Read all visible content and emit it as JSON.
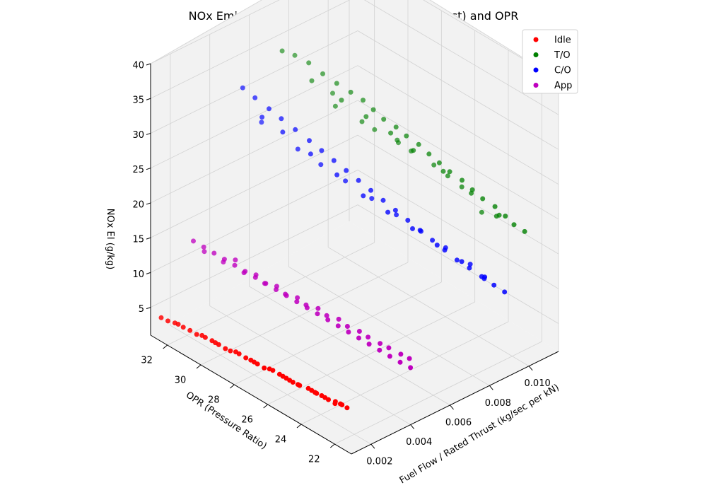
{
  "chart_data": {
    "type": "scatter3d",
    "title": "NOx Emission Index vs (Fuel Flow / Rated Thrust) and OPR",
    "xlabel": "Fuel Flow / Rated Thrust (kg/sec per kN)",
    "ylabel": "OPR (Pressure Ratio)",
    "zlabel": "NOx EI (g/kg)",
    "xticks": [
      "0.002",
      "0.004",
      "0.006",
      "0.008",
      "0.010"
    ],
    "yticks": [
      "22",
      "24",
      "26",
      "28",
      "30",
      "32"
    ],
    "zticks": [
      "5",
      "10",
      "15",
      "20",
      "25",
      "30",
      "35",
      "40"
    ],
    "xlim": [
      0.001,
      0.0115
    ],
    "ylim": [
      21,
      33
    ],
    "zlim": [
      1,
      40
    ],
    "grid": true,
    "legend_position": "top-right",
    "series": [
      {
        "name": "Idle",
        "color": "#ff0000",
        "points": [
          {
            "x": 0.0012,
            "y": 32.6,
            "z": 3.8
          },
          {
            "x": 0.0012,
            "y": 32.2,
            "z": 3.9
          },
          {
            "x": 0.0013,
            "y": 31.7,
            "z": 4.0
          },
          {
            "x": 0.0013,
            "y": 31.4,
            "z": 4.0
          },
          {
            "x": 0.0013,
            "y": 31.0,
            "z": 4.1
          },
          {
            "x": 0.0013,
            "y": 30.6,
            "z": 4.1
          },
          {
            "x": 0.0014,
            "y": 30.2,
            "z": 4.1
          },
          {
            "x": 0.0014,
            "y": 29.8,
            "z": 4.2
          },
          {
            "x": 0.0014,
            "y": 29.4,
            "z": 4.2
          },
          {
            "x": 0.0014,
            "y": 29.0,
            "z": 4.2
          },
          {
            "x": 0.0014,
            "y": 28.7,
            "z": 4.3
          },
          {
            "x": 0.0015,
            "y": 28.3,
            "z": 4.3
          },
          {
            "x": 0.0015,
            "y": 27.9,
            "z": 4.3
          },
          {
            "x": 0.0015,
            "y": 27.6,
            "z": 4.4
          },
          {
            "x": 0.0015,
            "y": 27.2,
            "z": 4.4
          },
          {
            "x": 0.0015,
            "y": 26.8,
            "z": 4.4
          },
          {
            "x": 0.0016,
            "y": 26.4,
            "z": 4.5
          },
          {
            "x": 0.0016,
            "y": 26.0,
            "z": 4.5
          },
          {
            "x": 0.0016,
            "y": 25.6,
            "z": 4.5
          },
          {
            "x": 0.0016,
            "y": 25.2,
            "z": 4.5
          },
          {
            "x": 0.0016,
            "y": 24.8,
            "z": 4.6
          },
          {
            "x": 0.0017,
            "y": 24.4,
            "z": 4.6
          },
          {
            "x": 0.0017,
            "y": 24.0,
            "z": 4.6
          },
          {
            "x": 0.0017,
            "y": 23.6,
            "z": 4.7
          },
          {
            "x": 0.0017,
            "y": 23.2,
            "z": 4.7
          },
          {
            "x": 0.0017,
            "y": 22.8,
            "z": 4.7
          },
          {
            "x": 0.0018,
            "y": 22.5,
            "z": 4.8
          },
          {
            "x": 0.0018,
            "y": 22.2,
            "z": 4.8
          },
          {
            "x": 0.0013,
            "y": 31.9,
            "z": 3.9
          },
          {
            "x": 0.0014,
            "y": 30.4,
            "z": 4.1
          },
          {
            "x": 0.0015,
            "y": 28.5,
            "z": 4.3
          },
          {
            "x": 0.0016,
            "y": 26.6,
            "z": 4.4
          },
          {
            "x": 0.0016,
            "y": 25.4,
            "z": 4.5
          },
          {
            "x": 0.0017,
            "y": 23.9,
            "z": 4.6
          },
          {
            "x": 0.0017,
            "y": 23.4,
            "z": 4.7
          },
          {
            "x": 0.0018,
            "y": 22.9,
            "z": 4.7
          },
          {
            "x": 0.0016,
            "y": 25.8,
            "z": 4.5
          },
          {
            "x": 0.0017,
            "y": 24.2,
            "z": 4.6
          },
          {
            "x": 0.0018,
            "y": 22.6,
            "z": 4.8
          },
          {
            "x": 0.0015,
            "y": 27.4,
            "z": 4.4
          },
          {
            "x": 0.0016,
            "y": 24.9,
            "z": 4.6
          },
          {
            "x": 0.0014,
            "y": 29.6,
            "z": 4.2
          }
        ]
      },
      {
        "name": "T/O",
        "color": "#008000",
        "points": [
          {
            "x": 0.0075,
            "y": 32.8,
            "z": 33.0
          },
          {
            "x": 0.0078,
            "y": 32.4,
            "z": 32.5
          },
          {
            "x": 0.008,
            "y": 31.8,
            "z": 32.0
          },
          {
            "x": 0.0082,
            "y": 31.2,
            "z": 31.0
          },
          {
            "x": 0.0084,
            "y": 30.6,
            "z": 30.2
          },
          {
            "x": 0.0086,
            "y": 30.0,
            "z": 29.5
          },
          {
            "x": 0.0088,
            "y": 29.5,
            "z": 28.8
          },
          {
            "x": 0.0089,
            "y": 29.0,
            "z": 28.0
          },
          {
            "x": 0.009,
            "y": 28.5,
            "z": 27.2
          },
          {
            "x": 0.0092,
            "y": 28.0,
            "z": 26.5
          },
          {
            "x": 0.0093,
            "y": 27.5,
            "z": 25.8
          },
          {
            "x": 0.0095,
            "y": 27.0,
            "z": 25.0
          },
          {
            "x": 0.0096,
            "y": 26.5,
            "z": 24.2
          },
          {
            "x": 0.0097,
            "y": 26.0,
            "z": 23.5
          },
          {
            "x": 0.0098,
            "y": 25.5,
            "z": 22.8
          },
          {
            "x": 0.01,
            "y": 25.0,
            "z": 22.0
          },
          {
            "x": 0.0101,
            "y": 24.5,
            "z": 21.2
          },
          {
            "x": 0.0102,
            "y": 24.0,
            "z": 20.5
          },
          {
            "x": 0.0104,
            "y": 23.5,
            "z": 19.8
          },
          {
            "x": 0.0105,
            "y": 23.0,
            "z": 19.0
          },
          {
            "x": 0.0106,
            "y": 22.6,
            "z": 18.2
          },
          {
            "x": 0.0108,
            "y": 22.2,
            "z": 17.5
          },
          {
            "x": 0.0079,
            "y": 31.5,
            "z": 30.0
          },
          {
            "x": 0.0083,
            "y": 30.2,
            "z": 28.5
          },
          {
            "x": 0.0087,
            "y": 29.2,
            "z": 27.0
          },
          {
            "x": 0.0091,
            "y": 28.2,
            "z": 25.5
          },
          {
            "x": 0.0094,
            "y": 27.2,
            "z": 24.0
          },
          {
            "x": 0.0099,
            "y": 26.0,
            "z": 22.0
          },
          {
            "x": 0.0103,
            "y": 24.8,
            "z": 20.0
          },
          {
            "x": 0.0107,
            "y": 23.6,
            "z": 18.0
          },
          {
            "x": 0.0085,
            "y": 30.8,
            "z": 26.5
          },
          {
            "x": 0.009,
            "y": 29.8,
            "z": 25.0
          },
          {
            "x": 0.0096,
            "y": 28.4,
            "z": 23.5
          },
          {
            "x": 0.0101,
            "y": 26.8,
            "z": 21.5
          },
          {
            "x": 0.0105,
            "y": 25.6,
            "z": 19.5
          },
          {
            "x": 0.0109,
            "y": 24.0,
            "z": 17.0
          },
          {
            "x": 0.0093,
            "y": 29.4,
            "z": 24.0
          },
          {
            "x": 0.0098,
            "y": 27.8,
            "z": 22.5
          },
          {
            "x": 0.0103,
            "y": 26.2,
            "z": 20.5
          },
          {
            "x": 0.0087,
            "y": 31.2,
            "z": 27.5
          },
          {
            "x": 0.011,
            "y": 25.0,
            "z": 16.0
          },
          {
            "x": 0.01,
            "y": 28.8,
            "z": 22.0
          }
        ]
      },
      {
        "name": "C/O",
        "color": "#0000ff",
        "points": [
          {
            "x": 0.0055,
            "y": 32.8,
            "z": 30.5
          },
          {
            "x": 0.0057,
            "y": 32.3,
            "z": 29.5
          },
          {
            "x": 0.0059,
            "y": 31.7,
            "z": 28.5
          },
          {
            "x": 0.0061,
            "y": 31.2,
            "z": 27.5
          },
          {
            "x": 0.0063,
            "y": 30.6,
            "z": 26.5
          },
          {
            "x": 0.0065,
            "y": 30.0,
            "z": 25.5
          },
          {
            "x": 0.0067,
            "y": 29.5,
            "z": 24.5
          },
          {
            "x": 0.0069,
            "y": 29.0,
            "z": 23.5
          },
          {
            "x": 0.0071,
            "y": 28.5,
            "z": 22.5
          },
          {
            "x": 0.0073,
            "y": 28.0,
            "z": 21.5
          },
          {
            "x": 0.0075,
            "y": 27.5,
            "z": 20.5
          },
          {
            "x": 0.0077,
            "y": 27.0,
            "z": 19.5
          },
          {
            "x": 0.0079,
            "y": 26.5,
            "z": 18.5
          },
          {
            "x": 0.0081,
            "y": 26.0,
            "z": 17.5
          },
          {
            "x": 0.0083,
            "y": 25.5,
            "z": 16.5
          },
          {
            "x": 0.0085,
            "y": 25.0,
            "z": 15.5
          },
          {
            "x": 0.0087,
            "y": 24.5,
            "z": 14.5
          },
          {
            "x": 0.0089,
            "y": 24.0,
            "z": 13.5
          },
          {
            "x": 0.0091,
            "y": 23.5,
            "z": 12.8
          },
          {
            "x": 0.0093,
            "y": 23.0,
            "z": 12.0
          },
          {
            "x": 0.0095,
            "y": 22.5,
            "z": 11.2
          },
          {
            "x": 0.0097,
            "y": 22.1,
            "z": 10.5
          },
          {
            "x": 0.006,
            "y": 31.0,
            "z": 26.0
          },
          {
            "x": 0.0064,
            "y": 29.8,
            "z": 24.0
          },
          {
            "x": 0.0068,
            "y": 28.7,
            "z": 22.0
          },
          {
            "x": 0.0072,
            "y": 27.6,
            "z": 20.0
          },
          {
            "x": 0.0076,
            "y": 26.6,
            "z": 18.5
          },
          {
            "x": 0.008,
            "y": 25.6,
            "z": 17.0
          },
          {
            "x": 0.0084,
            "y": 24.6,
            "z": 15.5
          },
          {
            "x": 0.0088,
            "y": 23.6,
            "z": 14.0
          },
          {
            "x": 0.0092,
            "y": 22.7,
            "z": 12.5
          },
          {
            "x": 0.0066,
            "y": 30.8,
            "z": 23.0
          },
          {
            "x": 0.007,
            "y": 29.9,
            "z": 21.5
          },
          {
            "x": 0.0074,
            "y": 28.9,
            "z": 20.0
          },
          {
            "x": 0.0078,
            "y": 27.8,
            "z": 18.5
          },
          {
            "x": 0.0082,
            "y": 26.8,
            "z": 17.0
          },
          {
            "x": 0.0086,
            "y": 25.8,
            "z": 15.5
          },
          {
            "x": 0.009,
            "y": 24.8,
            "z": 14.0
          },
          {
            "x": 0.0094,
            "y": 23.8,
            "z": 12.5
          },
          {
            "x": 0.0058,
            "y": 32.0,
            "z": 27.0
          },
          {
            "x": 0.0062,
            "y": 32.5,
            "z": 25.0
          },
          {
            "x": 0.0096,
            "y": 23.2,
            "z": 11.0
          }
        ]
      },
      {
        "name": "App",
        "color": "#bf00bf",
        "points": [
          {
            "x": 0.003,
            "y": 32.8,
            "z": 12.0
          },
          {
            "x": 0.0031,
            "y": 32.3,
            "z": 11.7
          },
          {
            "x": 0.0032,
            "y": 31.8,
            "z": 11.4
          },
          {
            "x": 0.0033,
            "y": 31.3,
            "z": 11.1
          },
          {
            "x": 0.0034,
            "y": 30.8,
            "z": 10.8
          },
          {
            "x": 0.0035,
            "y": 30.3,
            "z": 10.5
          },
          {
            "x": 0.0036,
            "y": 29.8,
            "z": 10.2
          },
          {
            "x": 0.0037,
            "y": 29.3,
            "z": 9.9
          },
          {
            "x": 0.0038,
            "y": 28.8,
            "z": 9.6
          },
          {
            "x": 0.0039,
            "y": 28.3,
            "z": 9.3
          },
          {
            "x": 0.004,
            "y": 27.8,
            "z": 9.0
          },
          {
            "x": 0.0041,
            "y": 27.3,
            "z": 8.7
          },
          {
            "x": 0.0042,
            "y": 26.8,
            "z": 8.4
          },
          {
            "x": 0.0043,
            "y": 26.3,
            "z": 8.1
          },
          {
            "x": 0.0044,
            "y": 25.8,
            "z": 7.8
          },
          {
            "x": 0.0045,
            "y": 25.3,
            "z": 7.5
          },
          {
            "x": 0.0046,
            "y": 24.8,
            "z": 7.2
          },
          {
            "x": 0.0047,
            "y": 24.3,
            "z": 6.9
          },
          {
            "x": 0.0048,
            "y": 23.8,
            "z": 6.6
          },
          {
            "x": 0.0049,
            "y": 23.3,
            "z": 6.3
          },
          {
            "x": 0.005,
            "y": 22.8,
            "z": 6.0
          },
          {
            "x": 0.0051,
            "y": 22.3,
            "z": 5.8
          },
          {
            "x": 0.0033,
            "y": 32.5,
            "z": 10.5
          },
          {
            "x": 0.0035,
            "y": 31.6,
            "z": 10.0
          },
          {
            "x": 0.0037,
            "y": 30.6,
            "z": 9.6
          },
          {
            "x": 0.0039,
            "y": 29.6,
            "z": 9.2
          },
          {
            "x": 0.0041,
            "y": 28.6,
            "z": 8.8
          },
          {
            "x": 0.0043,
            "y": 27.6,
            "z": 8.4
          },
          {
            "x": 0.0045,
            "y": 26.6,
            "z": 8.0
          },
          {
            "x": 0.0047,
            "y": 25.6,
            "z": 7.6
          },
          {
            "x": 0.0049,
            "y": 24.6,
            "z": 7.2
          },
          {
            "x": 0.0051,
            "y": 23.6,
            "z": 6.8
          },
          {
            "x": 0.0053,
            "y": 22.6,
            "z": 6.4
          },
          {
            "x": 0.004,
            "y": 29.0,
            "z": 9.5
          },
          {
            "x": 0.0044,
            "y": 27.0,
            "z": 8.6
          },
          {
            "x": 0.0048,
            "y": 25.0,
            "z": 7.6
          },
          {
            "x": 0.0036,
            "y": 31.0,
            "z": 11.0
          },
          {
            "x": 0.0046,
            "y": 26.0,
            "z": 8.2
          },
          {
            "x": 0.0052,
            "y": 23.0,
            "z": 6.6
          },
          {
            "x": 0.0038,
            "y": 30.0,
            "z": 10.0
          },
          {
            "x": 0.0042,
            "y": 28.0,
            "z": 9.0
          },
          {
            "x": 0.005,
            "y": 24.0,
            "z": 7.0
          }
        ]
      }
    ]
  }
}
